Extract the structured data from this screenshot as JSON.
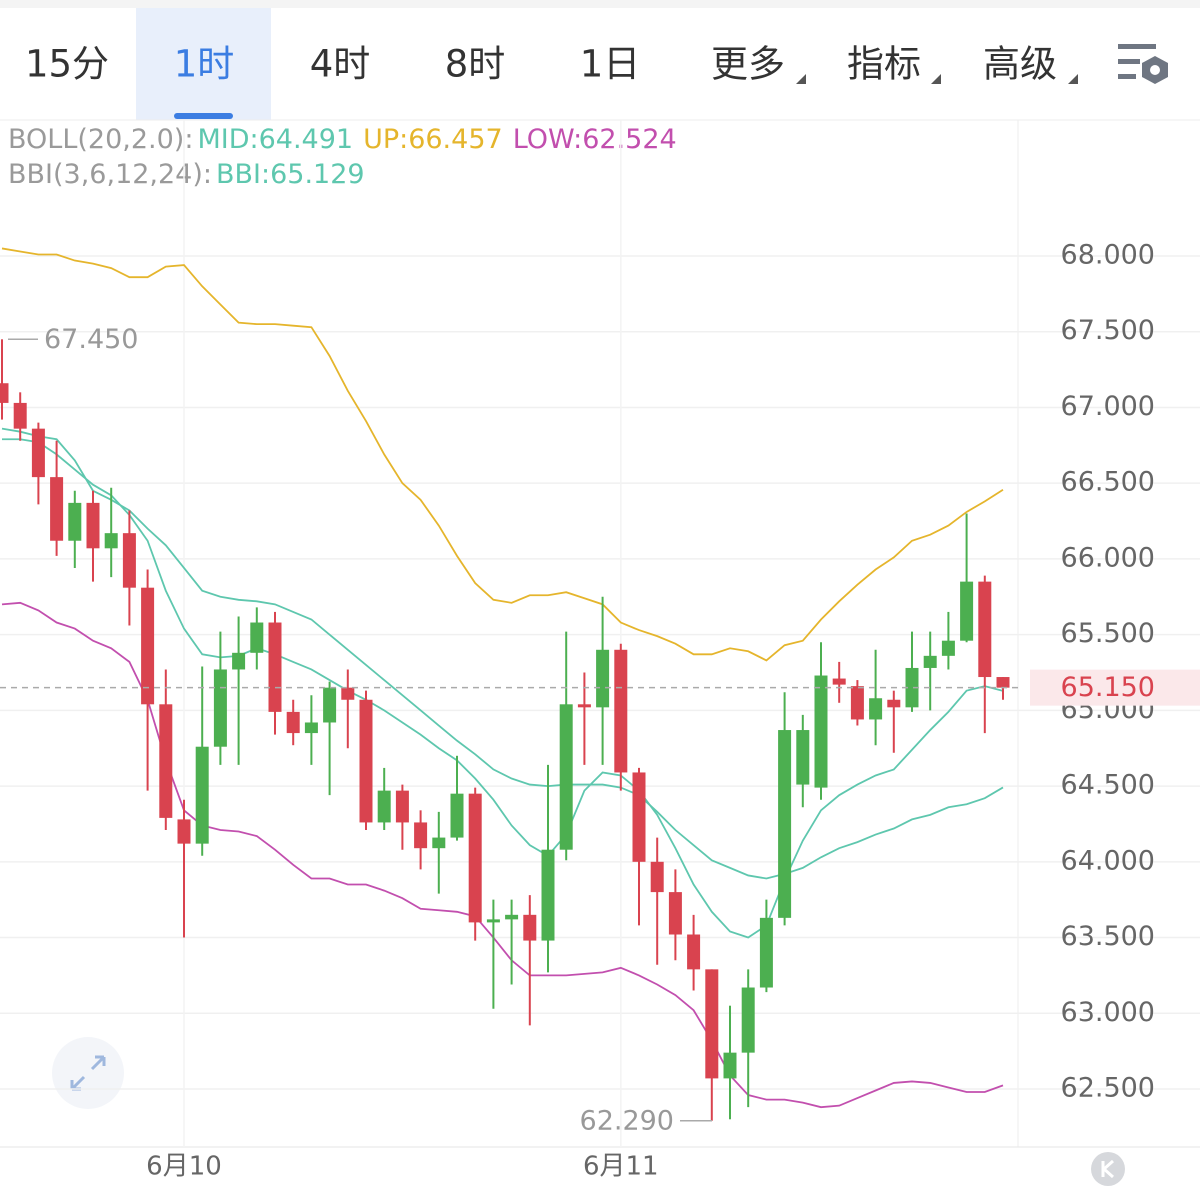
{
  "tabs": [
    "15分",
    "1时",
    "4时",
    "8时",
    "1日",
    "更多",
    "指标",
    "高级"
  ],
  "chart_data": {
    "type": "candlestick",
    "boll_label": "BOLL(20,2.0):",
    "bbi_label": "BBI(3,6,12,24):",
    "categories": [
      null,
      null,
      null,
      null,
      null,
      null,
      null,
      null,
      null,
      null,
      "6月10",
      null,
      null,
      null,
      null,
      null,
      null,
      null,
      null,
      null,
      null,
      null,
      null,
      null,
      null,
      null,
      null,
      null,
      null,
      null,
      null,
      null,
      null,
      null,
      "6月11",
      null,
      null,
      null,
      null,
      null,
      null,
      null,
      null,
      null,
      null,
      null,
      null,
      null,
      null,
      null,
      null,
      null,
      null,
      null,
      null,
      null
    ],
    "open": [
      67.16,
      67.03,
      66.86,
      66.54,
      66.12,
      66.37,
      66.07,
      66.17,
      65.81,
      65.04,
      64.28,
      64.12,
      64.76,
      65.27,
      65.38,
      65.58,
      64.99,
      64.85,
      64.92,
      65.15,
      65.07,
      64.26,
      64.47,
      64.26,
      64.09,
      64.16,
      64.45,
      63.6,
      63.62,
      63.65,
      63.48,
      64.08,
      65.04,
      65.02,
      65.4,
      64.59,
      64.0,
      63.8,
      63.52,
      63.29,
      62.57,
      62.74,
      63.17,
      63.63,
      64.51,
      64.49,
      65.21,
      65.16,
      64.94,
      65.07,
      65.02,
      65.28,
      65.36,
      65.46,
      65.85,
      65.22
    ],
    "high": [
      67.45,
      67.1,
      66.9,
      66.78,
      66.45,
      66.45,
      66.47,
      66.32,
      65.93,
      65.27,
      64.41,
      65.29,
      65.52,
      65.62,
      65.68,
      65.65,
      65.07,
      65.1,
      65.19,
      65.27,
      65.13,
      64.62,
      64.51,
      64.34,
      64.33,
      64.7,
      64.49,
      63.75,
      63.75,
      63.78,
      64.64,
      65.52,
      65.25,
      65.75,
      65.44,
      64.62,
      64.16,
      63.95,
      63.65,
      63.29,
      63.05,
      63.29,
      63.75,
      65.12,
      64.97,
      65.45,
      65.32,
      65.2,
      65.4,
      65.13,
      65.52,
      65.52,
      65.65,
      66.3,
      65.89,
      65.22
    ],
    "low": [
      66.92,
      66.78,
      66.36,
      66.02,
      65.94,
      65.85,
      65.88,
      65.56,
      64.47,
      64.21,
      63.5,
      64.04,
      64.64,
      64.64,
      65.27,
      64.84,
      64.77,
      64.64,
      64.44,
      64.75,
      64.21,
      64.21,
      64.08,
      63.95,
      63.79,
      64.14,
      63.48,
      63.03,
      63.19,
      62.92,
      63.27,
      64.01,
      64.64,
      64.64,
      64.47,
      63.58,
      63.32,
      63.35,
      63.15,
      62.29,
      62.3,
      62.38,
      63.14,
      63.58,
      64.36,
      64.41,
      65.05,
      64.9,
      64.77,
      64.72,
      64.99,
      65.0,
      65.27,
      65.45,
      64.85,
      65.07
    ],
    "close": [
      67.03,
      66.86,
      66.54,
      66.12,
      66.37,
      66.07,
      66.17,
      65.81,
      65.04,
      64.29,
      64.12,
      64.76,
      65.27,
      65.38,
      65.58,
      64.99,
      64.85,
      64.92,
      65.15,
      65.07,
      64.26,
      64.47,
      64.26,
      64.09,
      64.16,
      64.45,
      63.6,
      63.62,
      63.65,
      63.48,
      64.08,
      65.04,
      65.02,
      65.4,
      64.59,
      64.0,
      63.8,
      63.52,
      63.29,
      62.57,
      62.74,
      63.17,
      63.63,
      64.87,
      64.87,
      65.23,
      65.17,
      64.94,
      65.08,
      65.02,
      65.28,
      65.36,
      65.46,
      65.85,
      65.22,
      65.15
    ],
    "up_color": "#4caf50",
    "down_color": "#d9434f",
    "series": [
      {
        "name": "MID:64.491",
        "color": "#5ec7ae",
        "values": [
          66.86,
          66.84,
          66.81,
          66.79,
          66.65,
          66.45,
          66.39,
          66.32,
          66.2,
          66.09,
          65.94,
          65.79,
          65.75,
          65.73,
          65.72,
          65.7,
          65.65,
          65.6,
          65.5,
          65.4,
          65.3,
          65.2,
          65.1,
          65.0,
          64.9,
          64.8,
          64.71,
          64.61,
          64.55,
          64.51,
          64.5,
          64.51,
          64.51,
          64.51,
          64.49,
          64.44,
          64.33,
          64.21,
          64.11,
          64.01,
          63.96,
          63.91,
          63.89,
          63.92,
          63.96,
          64.03,
          64.09,
          64.13,
          64.18,
          64.22,
          64.28,
          64.31,
          64.36,
          64.38,
          64.42,
          64.491
        ]
      },
      {
        "name": "UP:66.457",
        "color": "#e5b52c",
        "values": [
          68.05,
          68.03,
          68.01,
          68.01,
          67.97,
          67.95,
          67.92,
          67.86,
          67.86,
          67.93,
          67.94,
          67.8,
          67.68,
          67.56,
          67.55,
          67.55,
          67.54,
          67.53,
          67.34,
          67.11,
          66.91,
          66.69,
          66.5,
          66.39,
          66.22,
          66.02,
          65.84,
          65.73,
          65.71,
          65.76,
          65.76,
          65.78,
          65.74,
          65.7,
          65.58,
          65.53,
          65.49,
          65.44,
          65.37,
          65.37,
          65.41,
          65.39,
          65.33,
          65.43,
          65.46,
          65.6,
          65.72,
          65.83,
          65.93,
          66.01,
          66.12,
          66.16,
          66.22,
          66.31,
          66.38,
          66.457
        ]
      },
      {
        "name": "LOW:62.524",
        "color": "#c24fae",
        "values": [
          65.7,
          65.71,
          65.66,
          65.58,
          65.54,
          65.46,
          65.41,
          65.32,
          65.07,
          64.67,
          64.34,
          64.24,
          64.21,
          64.2,
          64.17,
          64.08,
          63.98,
          63.89,
          63.89,
          63.85,
          63.85,
          63.81,
          63.76,
          63.69,
          63.68,
          63.67,
          63.64,
          63.5,
          63.35,
          63.25,
          63.25,
          63.25,
          63.26,
          63.27,
          63.3,
          63.25,
          63.19,
          63.12,
          63.02,
          62.82,
          62.59,
          62.46,
          62.43,
          62.43,
          62.41,
          62.38,
          62.39,
          62.44,
          62.49,
          62.54,
          62.55,
          62.54,
          62.51,
          62.48,
          62.48,
          62.524
        ]
      },
      {
        "name": "BBI:65.129",
        "color": "#5ec7ae",
        "values": [
          66.79,
          66.79,
          66.77,
          66.69,
          66.59,
          66.49,
          66.42,
          66.29,
          66.12,
          65.79,
          65.54,
          65.37,
          65.35,
          65.36,
          65.41,
          65.37,
          65.32,
          65.27,
          65.2,
          65.13,
          65.07,
          65.0,
          64.92,
          64.84,
          64.75,
          64.67,
          64.55,
          64.41,
          64.24,
          64.11,
          64.04,
          64.18,
          64.47,
          64.59,
          64.57,
          64.47,
          64.31,
          64.09,
          63.85,
          63.67,
          63.54,
          63.5,
          63.58,
          63.88,
          64.14,
          64.34,
          64.44,
          64.51,
          64.57,
          64.61,
          64.74,
          64.87,
          64.99,
          65.13,
          65.16,
          65.129
        ]
      }
    ],
    "ylim": [
      62.117,
      68.898
    ],
    "yticks": [
      {
        "value": 62.5,
        "label": "62.500"
      },
      {
        "value": 63,
        "label": "63.000"
      },
      {
        "value": 63.5,
        "label": "63.500"
      },
      {
        "value": 64,
        "label": "64.000"
      },
      {
        "value": 64.5,
        "label": "64.500"
      },
      {
        "value": 65,
        "label": "65.000"
      },
      {
        "value": 65.5,
        "label": "65.500"
      },
      {
        "value": 66,
        "label": "66.000"
      },
      {
        "value": 66.5,
        "label": "66.500"
      },
      {
        "value": 67,
        "label": "67.000"
      },
      {
        "value": 67.5,
        "label": "67.500"
      },
      {
        "value": 68,
        "label": "68.000"
      }
    ],
    "grid": true,
    "high_marker": {
      "value": 67.45,
      "label": "67.450"
    },
    "low_marker": {
      "value": 62.29,
      "label": "62.290"
    },
    "last_price": {
      "value": 65.15,
      "label": "65.150"
    }
  }
}
